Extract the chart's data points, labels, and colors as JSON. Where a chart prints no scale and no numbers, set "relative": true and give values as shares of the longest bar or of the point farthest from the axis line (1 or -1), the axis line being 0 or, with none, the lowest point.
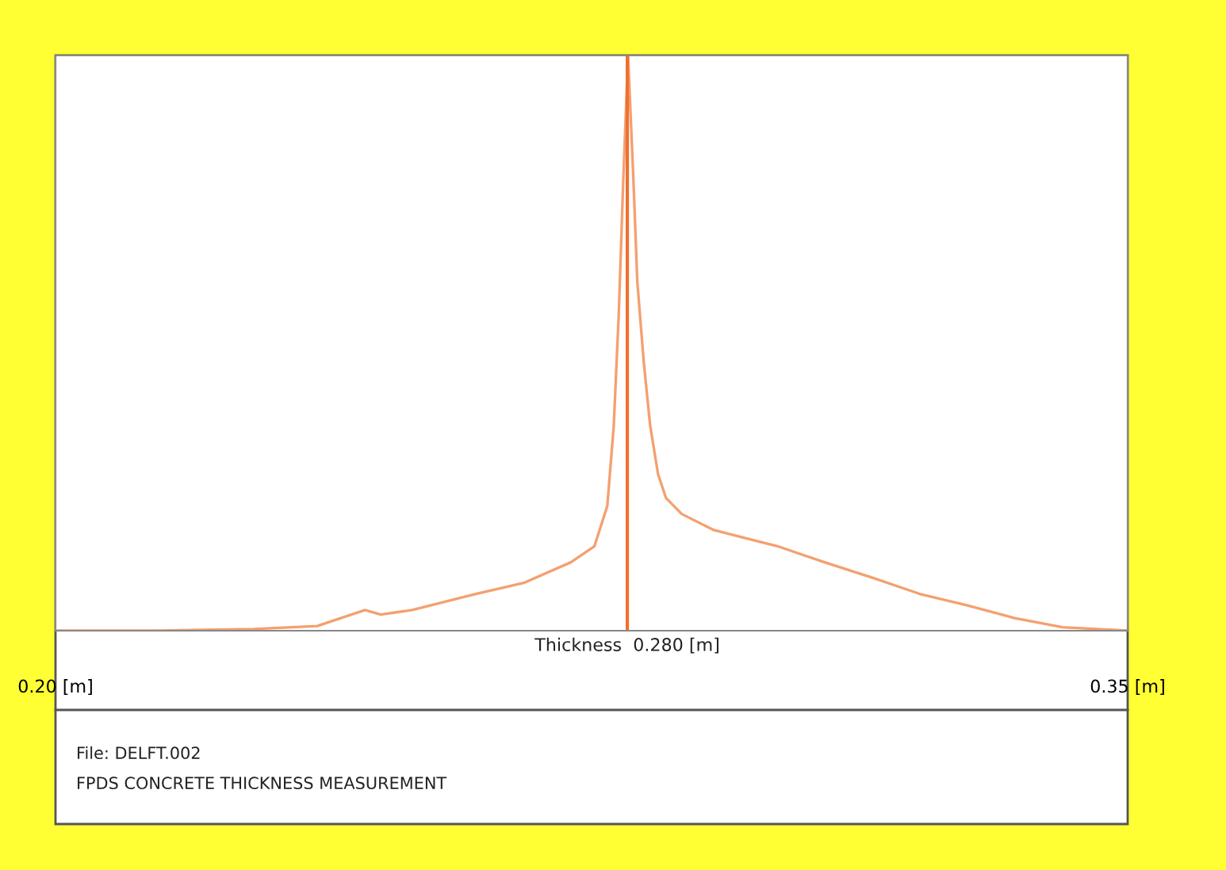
{
  "chart_data": {
    "type": "line",
    "relative": true,
    "xlim": [
      0.2,
      0.35
    ],
    "xticks": [
      {
        "value": 0.2,
        "label": "0.20 [m]"
      },
      {
        "value": 0.35,
        "label": "0.35 [m]"
      }
    ],
    "tick_labels": "x",
    "grid": false,
    "x": [
      0.2,
      0.2144,
      0.2277,
      0.2366,
      0.2433,
      0.2455,
      0.2499,
      0.2588,
      0.2655,
      0.2721,
      0.2754,
      0.2772,
      0.2781,
      0.2788,
      0.2794,
      0.2801,
      0.2808,
      0.2814,
      0.2823,
      0.2832,
      0.2843,
      0.2854,
      0.2876,
      0.2921,
      0.2965,
      0.301,
      0.3076,
      0.3143,
      0.3209,
      0.3276,
      0.3342,
      0.3409,
      0.35
    ],
    "series": [
      {
        "color": "#f4a070",
        "values": [
          0,
          0,
          0.003,
          0.008,
          0.036,
          0.028,
          0.036,
          0.064,
          0.083,
          0.119,
          0.147,
          0.217,
          0.356,
          0.55,
          0.772,
          1,
          0.8,
          0.606,
          0.467,
          0.356,
          0.272,
          0.231,
          0.203,
          0.175,
          0.161,
          0.147,
          0.119,
          0.092,
          0.064,
          0.044,
          0.022,
          0.006,
          0
        ]
      }
    ],
    "ref_lines": [
      {
        "axis": "x",
        "value": 0.28,
        "label": "Thickness  0.280 [m]",
        "color": "#f07030"
      }
    ],
    "annotations": [
      "File: DELFT.002",
      "FPDS CONCRETE THICKNESS MEASUREMENT"
    ]
  }
}
